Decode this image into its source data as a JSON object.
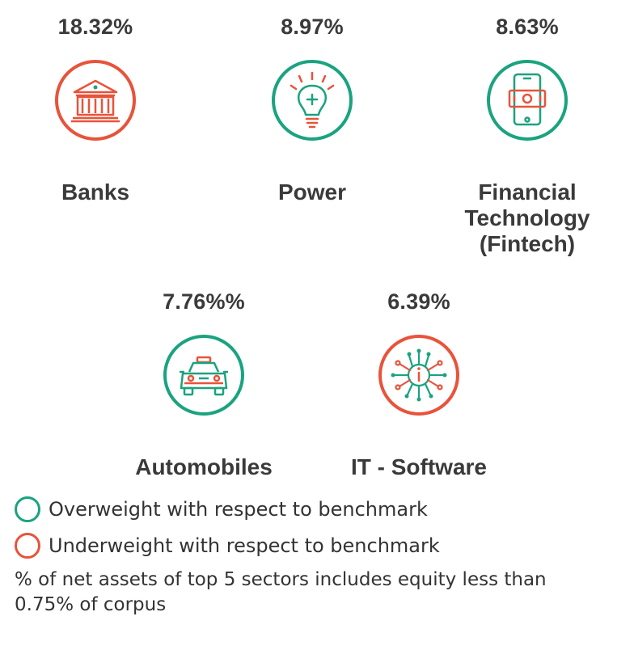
{
  "colors": {
    "overweight": "#1aa37f",
    "underweight": "#e8533a",
    "text": "#3a3a3a"
  },
  "sectors": [
    {
      "name": "Banks",
      "value_text": "18.32%",
      "weight": "underweight",
      "icon": "bank-icon"
    },
    {
      "name": "Power",
      "value_text": "8.97%",
      "weight": "overweight",
      "icon": "lightbulb-icon"
    },
    {
      "name": "Financial Technology (Fintech)",
      "value_text": "8.63%",
      "weight": "overweight",
      "icon": "mobile-payment-icon"
    },
    {
      "name": "Automobiles",
      "value_text": "7.76%%",
      "weight": "overweight",
      "icon": "car-icon"
    },
    {
      "name": "IT - Software",
      "value_text": "6.39%",
      "weight": "underweight",
      "icon": "circuit-icon"
    }
  ],
  "legend": {
    "overweight_label": "Overweight with respect to benchmark",
    "underweight_label": "Underweight with respect to benchmark"
  },
  "footnote": "% of net assets of top 5 sectors includes equity less than 0.75% of corpus",
  "chart_data": {
    "type": "table",
    "categories": [
      "Banks",
      "Power",
      "Financial Technology (Fintech)",
      "Automobiles",
      "IT - Software"
    ],
    "values": [
      18.32,
      8.97,
      8.63,
      7.76,
      6.39
    ],
    "value_labels": [
      "18.32%",
      "8.97%",
      "8.63%",
      "7.76%%",
      "6.39%"
    ],
    "weights": [
      "underweight",
      "overweight",
      "overweight",
      "overweight",
      "underweight"
    ],
    "legend": [
      "Overweight with respect to benchmark",
      "Underweight with respect to benchmark"
    ]
  }
}
